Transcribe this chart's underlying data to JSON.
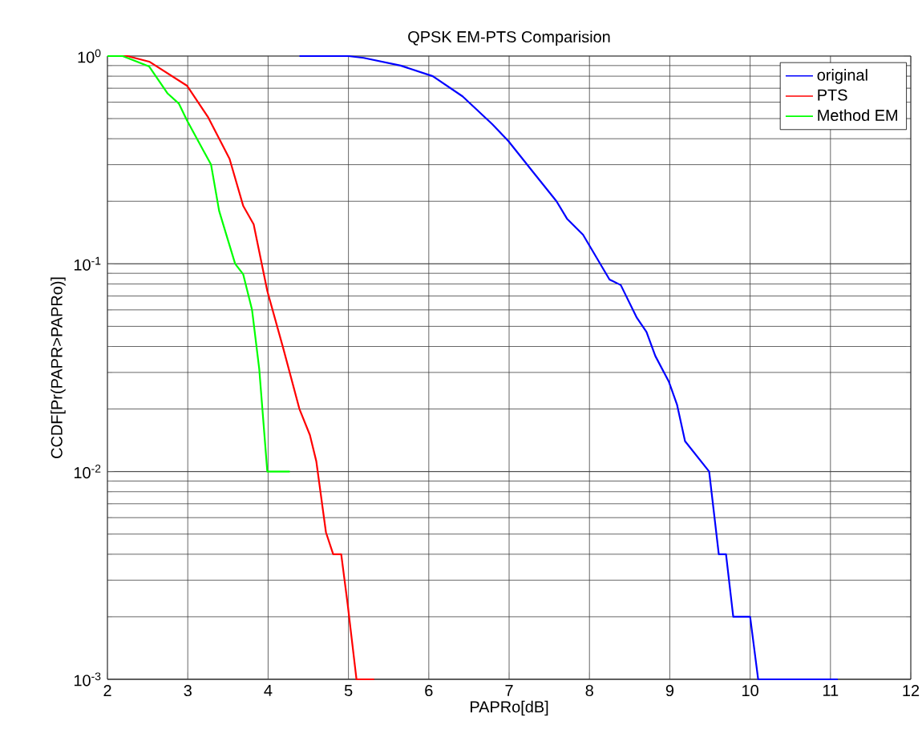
{
  "chart_data": {
    "type": "line",
    "title": "QPSK EM-PTS Comparision",
    "xlabel": "PAPRo[dB]",
    "ylabel": "CCDF[Pr(PAPR>PAPRo)]",
    "log": "y",
    "grid": true,
    "legend": "top right",
    "line_style": "solid",
    "marker": "none",
    "xlim": [
      2,
      12
    ],
    "xticks": [
      2,
      3,
      4,
      5,
      6,
      7,
      8,
      9,
      10,
      11,
      12
    ],
    "ylim": [
      0.001,
      1
    ],
    "yticks": [
      {
        "value": 0.001,
        "label": "10$^{-3}$"
      },
      {
        "value": 0.01,
        "label": "10$^{-2}$"
      },
      {
        "value": 0.1,
        "label": "10$^{-1}$"
      },
      {
        "value": 1,
        "label": "10$^{0}$"
      }
    ],
    "series": [
      {
        "name": "original",
        "color": "#0000ff",
        "x": [
          4.39,
          5.0,
          5.19,
          5.65,
          6.05,
          6.42,
          6.79,
          6.99,
          7.32,
          7.59,
          7.72,
          7.92,
          8.25,
          8.39,
          8.59,
          8.71,
          8.82,
          8.99,
          9.09,
          9.19,
          9.49,
          9.61,
          9.7,
          9.79,
          10.0,
          10.1,
          11.09
        ],
        "values": [
          1,
          1,
          0.98,
          0.9,
          0.8,
          0.64,
          0.47,
          0.39,
          0.27,
          0.2,
          0.165,
          0.138,
          0.084,
          0.079,
          0.055,
          0.047,
          0.036,
          0.027,
          0.021,
          0.014,
          0.01,
          0.004,
          0.004,
          0.002,
          0.002,
          0.001,
          0.001
        ]
      },
      {
        "name": "PTS",
        "color": "#ff0000",
        "x": [
          2.0,
          2.25,
          2.52,
          2.99,
          3.25,
          3.52,
          3.69,
          3.82,
          3.99,
          4.19,
          4.39,
          4.52,
          4.6,
          4.72,
          4.81,
          4.91,
          4.99,
          5.1,
          5.32
        ],
        "values": [
          1,
          1,
          0.94,
          0.72,
          0.51,
          0.32,
          0.19,
          0.155,
          0.074,
          0.039,
          0.02,
          0.015,
          0.0112,
          0.0051,
          0.004,
          0.004,
          0.0023,
          0.001,
          0.001
        ]
      },
      {
        "name": "Method EM",
        "color": "#00ff00",
        "x": [
          2.0,
          2.19,
          2.52,
          2.75,
          2.89,
          2.99,
          3.29,
          3.39,
          3.49,
          3.59,
          3.69,
          3.8,
          3.89,
          3.99,
          4.27
        ],
        "values": [
          1,
          1,
          0.89,
          0.66,
          0.59,
          0.49,
          0.3,
          0.18,
          0.134,
          0.1,
          0.089,
          0.06,
          0.031,
          0.01,
          0.01
        ]
      }
    ]
  }
}
